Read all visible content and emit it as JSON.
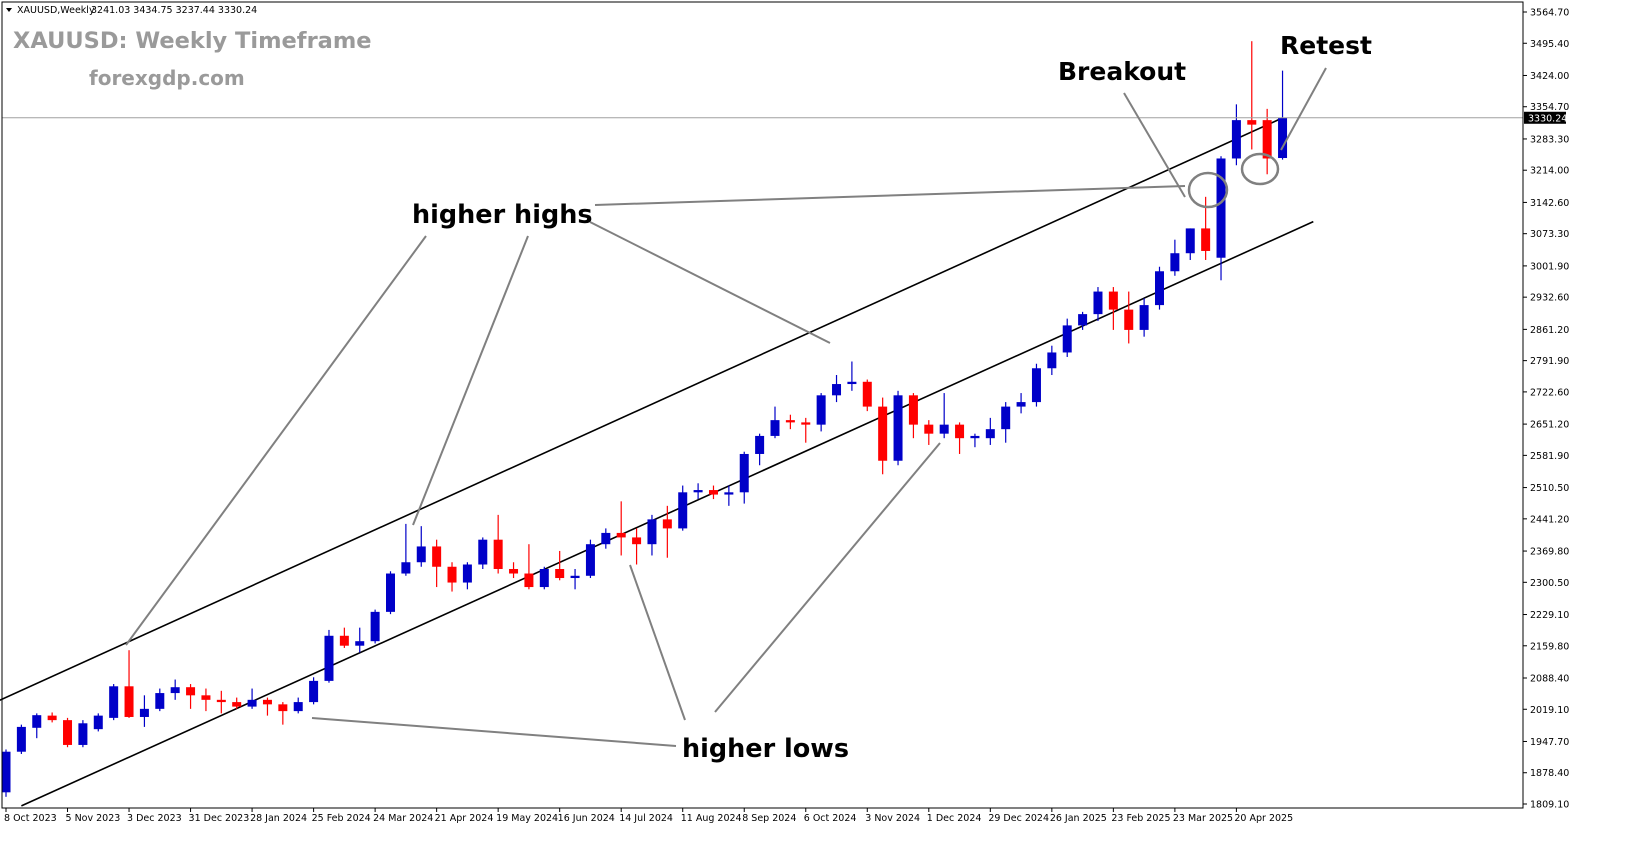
{
  "window": {
    "symbol_line": "XAUUSD,Weekly",
    "ohlc": "3241.03 3434.75 3237.44 3330.24"
  },
  "overlay": {
    "title": "XAUUSD: Weekly Timeframe",
    "website": "forexgdp.com"
  },
  "colors": {
    "bull": "#0000c8",
    "bear": "#ff0000",
    "trendline": "#000000",
    "annotation_line": "#808080",
    "title_text": "#9a9a9a",
    "price_tag_bg": "#000000"
  },
  "annotations": {
    "higher_highs": "higher highs",
    "higher_lows": "higher lows",
    "breakout": "Breakout",
    "retest": "Retest"
  },
  "chart_data": {
    "type": "candlestick",
    "title": "XAUUSD: Weekly Timeframe",
    "timeframe": "Weekly",
    "current_price": 3330.24,
    "current_price_label": "3330.24",
    "y_ticks": [
      "3564.70",
      "3495.40",
      "3424.00",
      "3354.70",
      "3283.30",
      "3214.00",
      "3142.60",
      "3073.30",
      "3001.90",
      "2932.60",
      "2861.20",
      "2791.90",
      "2722.60",
      "2651.20",
      "2581.90",
      "2510.50",
      "2441.20",
      "2369.80",
      "2300.50",
      "2229.10",
      "2159.80",
      "2088.40",
      "2019.10",
      "1947.70",
      "1878.40",
      "1809.10"
    ],
    "x_ticks": [
      {
        "label": "8 Oct 2023",
        "bar": 0
      },
      {
        "label": "5 Nov 2023",
        "bar": 4
      },
      {
        "label": "3 Dec 2023",
        "bar": 8
      },
      {
        "label": "31 Dec 2023",
        "bar": 12
      },
      {
        "label": "28 Jan 2024",
        "bar": 16
      },
      {
        "label": "25 Feb 2024",
        "bar": 20
      },
      {
        "label": "24 Mar 2024",
        "bar": 24
      },
      {
        "label": "21 Apr 2024",
        "bar": 28
      },
      {
        "label": "19 May 2024",
        "bar": 32
      },
      {
        "label": "16 Jun 2024",
        "bar": 36
      },
      {
        "label": "14 Jul 2024",
        "bar": 40
      },
      {
        "label": "11 Aug 2024",
        "bar": 44
      },
      {
        "label": "8 Sep 2024",
        "bar": 48
      },
      {
        "label": "6 Oct 2024",
        "bar": 52
      },
      {
        "label": "3 Nov 2024",
        "bar": 56
      },
      {
        "label": "1 Dec 2024",
        "bar": 60
      },
      {
        "label": "29 Dec 2024",
        "bar": 64
      },
      {
        "label": "26 Jan 2025",
        "bar": 68
      },
      {
        "label": "23 Feb 2025",
        "bar": 72
      },
      {
        "label": "23 Mar 2025",
        "bar": 76
      },
      {
        "label": "20 Apr 2025",
        "bar": 80
      }
    ],
    "candles": [
      {
        "o": 1835,
        "h": 1930,
        "l": 1825,
        "c": 1925
      },
      {
        "o": 1925,
        "h": 1985,
        "l": 1920,
        "c": 1980
      },
      {
        "o": 1978,
        "h": 2010,
        "l": 1955,
        "c": 2006
      },
      {
        "o": 2005,
        "h": 2012,
        "l": 1990,
        "c": 1995
      },
      {
        "o": 1995,
        "h": 2000,
        "l": 1935,
        "c": 1940
      },
      {
        "o": 1940,
        "h": 1995,
        "l": 1935,
        "c": 1988
      },
      {
        "o": 1975,
        "h": 2010,
        "l": 1970,
        "c": 2005
      },
      {
        "o": 2000,
        "h": 2075,
        "l": 1995,
        "c": 2070
      },
      {
        "o": 2070,
        "h": 2150,
        "l": 2000,
        "c": 2002
      },
      {
        "o": 2002,
        "h": 2050,
        "l": 1980,
        "c": 2020
      },
      {
        "o": 2020,
        "h": 2065,
        "l": 2015,
        "c": 2055
      },
      {
        "o": 2055,
        "h": 2085,
        "l": 2040,
        "c": 2068
      },
      {
        "o": 2068,
        "h": 2075,
        "l": 2020,
        "c": 2050
      },
      {
        "o": 2050,
        "h": 2065,
        "l": 2015,
        "c": 2040
      },
      {
        "o": 2040,
        "h": 2060,
        "l": 2010,
        "c": 2035
      },
      {
        "o": 2035,
        "h": 2045,
        "l": 2020,
        "c": 2025
      },
      {
        "o": 2025,
        "h": 2065,
        "l": 2020,
        "c": 2040
      },
      {
        "o": 2040,
        "h": 2045,
        "l": 2005,
        "c": 2030
      },
      {
        "o": 2030,
        "h": 2035,
        "l": 1985,
        "c": 2015
      },
      {
        "o": 2015,
        "h": 2045,
        "l": 2010,
        "c": 2035
      },
      {
        "o": 2035,
        "h": 2090,
        "l": 2030,
        "c": 2082
      },
      {
        "o": 2082,
        "h": 2195,
        "l": 2078,
        "c": 2182
      },
      {
        "o": 2182,
        "h": 2200,
        "l": 2155,
        "c": 2160
      },
      {
        "o": 2160,
        "h": 2200,
        "l": 2145,
        "c": 2170
      },
      {
        "o": 2170,
        "h": 2240,
        "l": 2165,
        "c": 2235
      },
      {
        "o": 2235,
        "h": 2325,
        "l": 2230,
        "c": 2320
      },
      {
        "o": 2320,
        "h": 2430,
        "l": 2315,
        "c": 2345
      },
      {
        "o": 2345,
        "h": 2425,
        "l": 2335,
        "c": 2380
      },
      {
        "o": 2380,
        "h": 2395,
        "l": 2290,
        "c": 2335
      },
      {
        "o": 2335,
        "h": 2345,
        "l": 2280,
        "c": 2300
      },
      {
        "o": 2300,
        "h": 2345,
        "l": 2285,
        "c": 2340
      },
      {
        "o": 2340,
        "h": 2400,
        "l": 2330,
        "c": 2395
      },
      {
        "o": 2395,
        "h": 2450,
        "l": 2320,
        "c": 2330
      },
      {
        "o": 2330,
        "h": 2345,
        "l": 2310,
        "c": 2320
      },
      {
        "o": 2320,
        "h": 2385,
        "l": 2285,
        "c": 2290
      },
      {
        "o": 2290,
        "h": 2335,
        "l": 2285,
        "c": 2330
      },
      {
        "o": 2330,
        "h": 2370,
        "l": 2305,
        "c": 2310
      },
      {
        "o": 2310,
        "h": 2330,
        "l": 2285,
        "c": 2315
      },
      {
        "o": 2315,
        "h": 2395,
        "l": 2310,
        "c": 2385
      },
      {
        "o": 2385,
        "h": 2420,
        "l": 2375,
        "c": 2410
      },
      {
        "o": 2410,
        "h": 2480,
        "l": 2360,
        "c": 2400
      },
      {
        "o": 2400,
        "h": 2420,
        "l": 2340,
        "c": 2385
      },
      {
        "o": 2385,
        "h": 2450,
        "l": 2360,
        "c": 2440
      },
      {
        "o": 2440,
        "h": 2470,
        "l": 2355,
        "c": 2420
      },
      {
        "o": 2420,
        "h": 2515,
        "l": 2415,
        "c": 2500
      },
      {
        "o": 2500,
        "h": 2520,
        "l": 2485,
        "c": 2505
      },
      {
        "o": 2505,
        "h": 2515,
        "l": 2485,
        "c": 2495
      },
      {
        "o": 2495,
        "h": 2515,
        "l": 2470,
        "c": 2500
      },
      {
        "o": 2500,
        "h": 2590,
        "l": 2475,
        "c": 2585
      },
      {
        "o": 2585,
        "h": 2630,
        "l": 2560,
        "c": 2625
      },
      {
        "o": 2625,
        "h": 2690,
        "l": 2620,
        "c": 2660
      },
      {
        "o": 2660,
        "h": 2672,
        "l": 2640,
        "c": 2655
      },
      {
        "o": 2655,
        "h": 2665,
        "l": 2610,
        "c": 2650
      },
      {
        "o": 2650,
        "h": 2720,
        "l": 2635,
        "c": 2715
      },
      {
        "o": 2715,
        "h": 2760,
        "l": 2700,
        "c": 2740
      },
      {
        "o": 2740,
        "h": 2790,
        "l": 2725,
        "c": 2745
      },
      {
        "o": 2745,
        "h": 2750,
        "l": 2680,
        "c": 2690
      },
      {
        "o": 2690,
        "h": 2710,
        "l": 2540,
        "c": 2570
      },
      {
        "o": 2570,
        "h": 2725,
        "l": 2560,
        "c": 2715
      },
      {
        "o": 2715,
        "h": 2720,
        "l": 2620,
        "c": 2650
      },
      {
        "o": 2650,
        "h": 2660,
        "l": 2605,
        "c": 2630
      },
      {
        "o": 2630,
        "h": 2720,
        "l": 2620,
        "c": 2650
      },
      {
        "o": 2650,
        "h": 2655,
        "l": 2585,
        "c": 2620
      },
      {
        "o": 2620,
        "h": 2630,
        "l": 2600,
        "c": 2625
      },
      {
        "o": 2620,
        "h": 2665,
        "l": 2605,
        "c": 2640
      },
      {
        "o": 2640,
        "h": 2700,
        "l": 2610,
        "c": 2690
      },
      {
        "o": 2690,
        "h": 2720,
        "l": 2675,
        "c": 2700
      },
      {
        "o": 2700,
        "h": 2785,
        "l": 2690,
        "c": 2775
      },
      {
        "o": 2775,
        "h": 2825,
        "l": 2760,
        "c": 2810
      },
      {
        "o": 2810,
        "h": 2885,
        "l": 2800,
        "c": 2870
      },
      {
        "o": 2870,
        "h": 2900,
        "l": 2860,
        "c": 2895
      },
      {
        "o": 2895,
        "h": 2955,
        "l": 2880,
        "c": 2945
      },
      {
        "o": 2945,
        "h": 2955,
        "l": 2860,
        "c": 2905
      },
      {
        "o": 2905,
        "h": 2945,
        "l": 2830,
        "c": 2860
      },
      {
        "o": 2860,
        "h": 2930,
        "l": 2845,
        "c": 2915
      },
      {
        "o": 2915,
        "h": 3000,
        "l": 2905,
        "c": 2990
      },
      {
        "o": 2990,
        "h": 3060,
        "l": 2980,
        "c": 3030
      },
      {
        "o": 3030,
        "h": 3085,
        "l": 3015,
        "c": 3085
      },
      {
        "o": 3085,
        "h": 3155,
        "l": 3015,
        "c": 3035
      },
      {
        "o": 3020,
        "h": 3245,
        "l": 2970,
        "c": 3240
      },
      {
        "o": 3240,
        "h": 3360,
        "l": 3225,
        "c": 3325
      },
      {
        "o": 3325,
        "h": 3500,
        "l": 3260,
        "c": 3315
      },
      {
        "o": 3325,
        "h": 3350,
        "l": 3205,
        "c": 3240
      },
      {
        "o": 3241.03,
        "h": 3434.75,
        "l": 3237.44,
        "c": 3330.24
      }
    ],
    "channel_lines": [
      {
        "name": "upper",
        "from": {
          "bar": -1,
          "price": 2030
        },
        "to": {
          "bar": 83,
          "price": 3330
        }
      },
      {
        "name": "lower",
        "from": {
          "bar": 1,
          "price": 1805
        },
        "to": {
          "bar": 85,
          "price": 3100
        }
      }
    ]
  }
}
